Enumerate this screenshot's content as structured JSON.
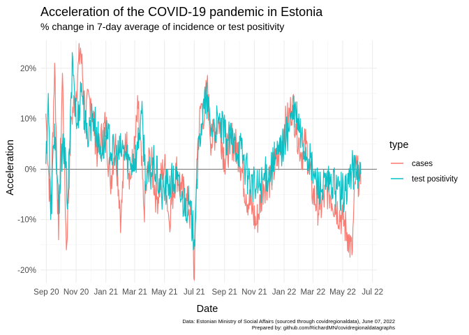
{
  "chart_data": {
    "type": "line",
    "title": "Acceleration of the COVID-19 pandemic in Estonia",
    "subtitle": "% change in 7-day average of incidence or test positivity",
    "xlabel": "Date",
    "ylabel": "Acceleration",
    "x_ticks": [
      "Sep 20",
      "Nov 20",
      "Jan 21",
      "Mar 21",
      "May 21",
      "Jul 21",
      "Sep 21",
      "Nov 21",
      "Jan 22",
      "Mar 22",
      "May 22",
      "Jul 22"
    ],
    "y_ticks": [
      "-20%",
      "-10%",
      "0%",
      "10%",
      "20%"
    ],
    "y_tick_values": [
      -20,
      -10,
      0,
      10,
      20
    ],
    "ylim": [
      -22.5,
      25.5
    ],
    "xlim": [
      "2020-08-20",
      "2022-07-10"
    ],
    "grid": true,
    "zero_line": true,
    "legend": {
      "title": "type",
      "position": "right"
    },
    "caption": [
      "Data: Estonian Ministry of Social Affairs (sourced through covidregionaldata), June 07, 2022",
      "Prepared by: github.com/RichardMN/covidregionaldatagraphs"
    ],
    "series": [
      {
        "name": "cases",
        "color": "#F8766D",
        "points": [
          [
            "2020-08-31",
            11
          ],
          [
            "2020-09-10",
            -9
          ],
          [
            "2020-09-18",
            21
          ],
          [
            "2020-09-26",
            -14
          ],
          [
            "2020-10-04",
            19
          ],
          [
            "2020-10-12",
            -16
          ],
          [
            "2020-10-22",
            10
          ],
          [
            "2020-10-30",
            14
          ],
          [
            "2020-11-10",
            24
          ],
          [
            "2020-11-20",
            11
          ],
          [
            "2020-12-01",
            14
          ],
          [
            "2020-12-15",
            3
          ],
          [
            "2021-01-01",
            9
          ],
          [
            "2021-01-10",
            -3
          ],
          [
            "2021-01-20",
            6
          ],
          [
            "2021-02-01",
            -10
          ],
          [
            "2021-02-10",
            7
          ],
          [
            "2021-02-20",
            -2
          ],
          [
            "2021-03-01",
            4
          ],
          [
            "2021-03-08",
            12
          ],
          [
            "2021-03-20",
            -8
          ],
          [
            "2021-04-01",
            3
          ],
          [
            "2021-04-15",
            -6
          ],
          [
            "2021-05-01",
            1
          ],
          [
            "2021-05-10",
            -10
          ],
          [
            "2021-05-25",
            0
          ],
          [
            "2021-06-05",
            -4
          ],
          [
            "2021-06-20",
            -8
          ],
          [
            "2021-06-28",
            -12
          ],
          [
            "2021-07-01",
            -22
          ],
          [
            "2021-07-06",
            2
          ],
          [
            "2021-07-15",
            13
          ],
          [
            "2021-07-22",
            10
          ],
          [
            "2021-07-27",
            17
          ],
          [
            "2021-08-05",
            5
          ],
          [
            "2021-08-20",
            10
          ],
          [
            "2021-09-01",
            2
          ],
          [
            "2021-09-15",
            6
          ],
          [
            "2021-10-01",
            3
          ],
          [
            "2021-10-15",
            -5
          ],
          [
            "2021-10-28",
            -8
          ],
          [
            "2021-11-05",
            -11
          ],
          [
            "2021-11-20",
            -3
          ],
          [
            "2021-12-01",
            -2
          ],
          [
            "2021-12-20",
            2
          ],
          [
            "2022-01-01",
            8
          ],
          [
            "2022-01-10",
            10
          ],
          [
            "2022-01-18",
            13
          ],
          [
            "2022-01-25",
            9
          ],
          [
            "2022-02-05",
            3
          ],
          [
            "2022-02-15",
            5
          ],
          [
            "2022-03-01",
            -5
          ],
          [
            "2022-03-15",
            -8
          ],
          [
            "2022-04-01",
            -4
          ],
          [
            "2022-04-15",
            -7
          ],
          [
            "2022-05-01",
            -10
          ],
          [
            "2022-05-12",
            -13
          ],
          [
            "2022-05-20",
            -17
          ],
          [
            "2022-05-28",
            0
          ],
          [
            "2022-06-07",
            -3
          ]
        ]
      },
      {
        "name": "test positivity",
        "color": "#00BFC4",
        "points": [
          [
            "2020-08-31",
            1
          ],
          [
            "2020-09-05",
            15
          ],
          [
            "2020-09-10",
            -10
          ],
          [
            "2020-09-18",
            9
          ],
          [
            "2020-09-26",
            -9
          ],
          [
            "2020-10-05",
            7
          ],
          [
            "2020-10-15",
            -6
          ],
          [
            "2020-10-25",
            22
          ],
          [
            "2020-11-02",
            8
          ],
          [
            "2020-11-12",
            17
          ],
          [
            "2020-11-22",
            6
          ],
          [
            "2020-12-05",
            11
          ],
          [
            "2020-12-20",
            4
          ],
          [
            "2021-01-05",
            6
          ],
          [
            "2021-01-20",
            2
          ],
          [
            "2021-02-05",
            4
          ],
          [
            "2021-02-20",
            1
          ],
          [
            "2021-03-05",
            3
          ],
          [
            "2021-03-15",
            11
          ],
          [
            "2021-03-25",
            -3
          ],
          [
            "2021-04-10",
            1
          ],
          [
            "2021-04-25",
            -5
          ],
          [
            "2021-05-10",
            -3
          ],
          [
            "2021-05-25",
            -2
          ],
          [
            "2021-06-05",
            -6
          ],
          [
            "2021-06-20",
            -7
          ],
          [
            "2021-07-01",
            -14
          ],
          [
            "2021-07-06",
            -2
          ],
          [
            "2021-07-15",
            9
          ],
          [
            "2021-07-25",
            14
          ],
          [
            "2021-08-05",
            8
          ],
          [
            "2021-08-20",
            9
          ],
          [
            "2021-09-05",
            6
          ],
          [
            "2021-09-20",
            5
          ],
          [
            "2021-10-05",
            4
          ],
          [
            "2021-10-20",
            -2
          ],
          [
            "2021-11-05",
            -4
          ],
          [
            "2021-11-20",
            -2
          ],
          [
            "2021-12-05",
            0
          ],
          [
            "2021-12-20",
            3
          ],
          [
            "2022-01-05",
            6
          ],
          [
            "2022-01-15",
            10
          ],
          [
            "2022-01-25",
            11
          ],
          [
            "2022-02-05",
            6
          ],
          [
            "2022-02-20",
            2
          ],
          [
            "2022-03-05",
            -2
          ],
          [
            "2022-03-20",
            -4
          ],
          [
            "2022-04-05",
            -3
          ],
          [
            "2022-04-20",
            -4
          ],
          [
            "2022-05-05",
            -5
          ],
          [
            "2022-05-20",
            0
          ],
          [
            "2022-06-07",
            -1
          ]
        ]
      }
    ]
  }
}
